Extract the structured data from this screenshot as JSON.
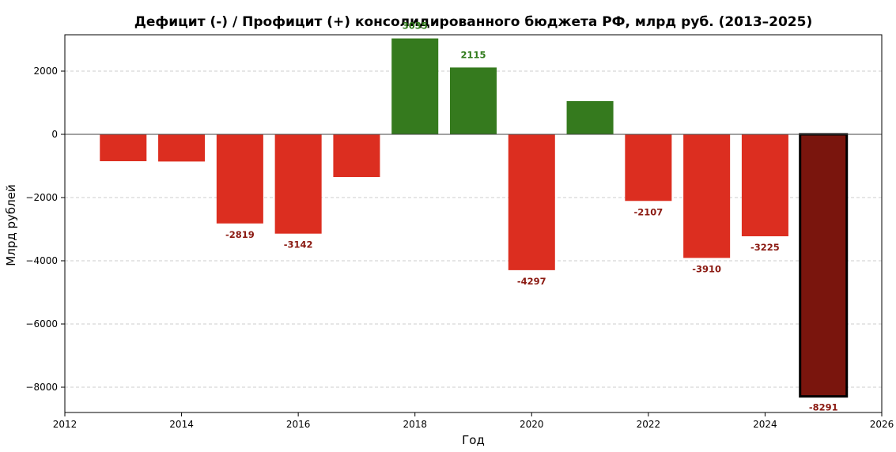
{
  "chart_data": {
    "type": "bar",
    "title": "Дефицит (-) / Профицит (+) консолидированного бюджета РФ, млрд руб. (2013–2025)",
    "xlabel": "Год",
    "ylabel": "Млрд рублей",
    "x": [
      2013,
      2014,
      2015,
      2016,
      2017,
      2018,
      2019,
      2020,
      2021,
      2022,
      2023,
      2024,
      2025
    ],
    "values": [
      -850,
      -860,
      -2819,
      -3142,
      -1350,
      3035,
      2115,
      -4297,
      1050,
      -2107,
      -3910,
      -3225,
      -8291
    ],
    "data_labels": [
      "",
      "",
      "-2819",
      "-3142",
      "",
      "3035",
      "2115",
      "-4297",
      "",
      "-2107",
      "-3910",
      "-3225",
      "-8291"
    ],
    "xlim": [
      2012,
      2026
    ],
    "ylim": [
      -8800,
      3150
    ],
    "x_ticks": [
      "2012",
      "2014",
      "2016",
      "2018",
      "2020",
      "2022",
      "2024",
      "2026"
    ],
    "y_ticks": [
      "2000",
      "0",
      "−2000",
      "−4000",
      "−6000",
      "−8000"
    ],
    "grid": "horizontal dashed",
    "colors": {
      "deficit": "#dc2e20",
      "surplus": "#357a1e",
      "highlight_2025": "#7a150d",
      "deficit_label": "#8b1a12",
      "surplus_label": "#2f7a1a",
      "zero_line": "#444444"
    }
  }
}
